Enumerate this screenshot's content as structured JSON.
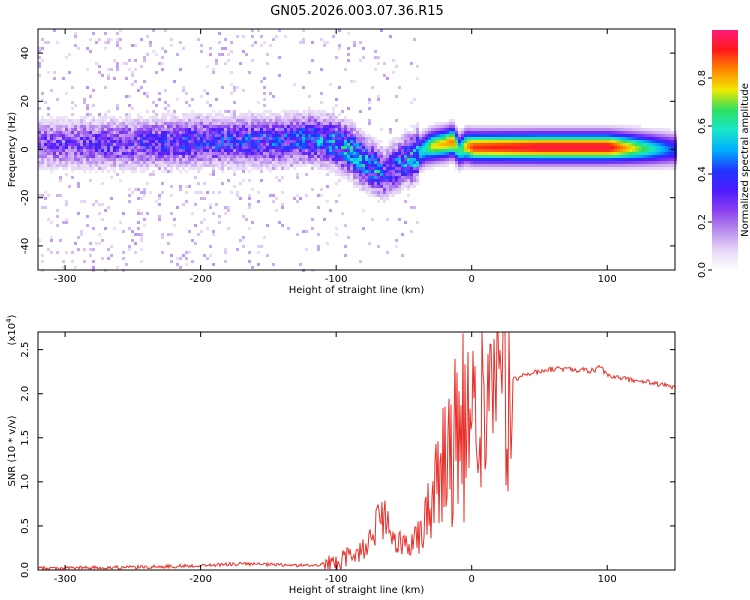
{
  "title": "GN05.2026.003.07.36.R15",
  "colors": {
    "snr_line": "#e8302a",
    "background": "#ffffff",
    "colormap": [
      "#ffffff",
      "#e6d6f6",
      "#b98cef",
      "#8a3ff0",
      "#4a1bff",
      "#1f38ff",
      "#00b0ff",
      "#18e6c8",
      "#2fe060",
      "#f0e800",
      "#ff8800",
      "#ff1a1a",
      "#ff1a7a"
    ]
  },
  "chart_data": [
    {
      "type": "heatmap",
      "title": "GN05.2026.003.07.36.R15",
      "xlabel": "Height of straight line (km)",
      "ylabel": "Frequency (Hz)",
      "xlim": [
        -320,
        150
      ],
      "ylim": [
        -50,
        50
      ],
      "xticks": [
        -300,
        -200,
        -100,
        0,
        100
      ],
      "xtick_labels": [
        "-300",
        "-200",
        "-100",
        "0",
        "100"
      ],
      "yticks": [
        -40,
        -20,
        0,
        20,
        40
      ],
      "ytick_labels": [
        "-40",
        "-20",
        "0",
        "20",
        "40"
      ],
      "colorbar": {
        "label": "Normalized spectral amplitude",
        "range": [
          0.0,
          1.0
        ],
        "ticks": [
          0.0,
          0.2,
          0.4,
          0.6,
          0.8
        ],
        "tick_labels": [
          "0.0",
          "0.2",
          "0.4",
          "0.6",
          "0.8"
        ]
      },
      "ridge": {
        "height_km": [
          -315,
          -250,
          -200,
          -150,
          -120,
          -100,
          -90,
          -80,
          -70,
          -65,
          -60,
          -55,
          -50,
          -45,
          -40,
          -35,
          -30,
          -20,
          -15,
          -10,
          -5,
          0,
          50,
          100,
          150
        ],
        "frequency_hz": [
          3,
          3,
          4,
          4,
          5,
          3,
          0,
          -5,
          -8,
          -10,
          -7,
          -6,
          -4,
          -3,
          -1,
          1,
          2,
          3,
          4,
          0,
          2,
          1.5,
          1.5,
          1.5,
          0.5
        ],
        "amplitude": [
          0.25,
          0.3,
          0.35,
          0.35,
          0.4,
          0.45,
          0.5,
          0.5,
          0.45,
          0.3,
          0.35,
          0.4,
          0.45,
          0.5,
          0.55,
          0.6,
          0.75,
          0.8,
          0.85,
          0.6,
          0.8,
          0.9,
          0.95,
          0.95,
          0.4
        ]
      }
    },
    {
      "type": "line",
      "xlabel": "Height of straight line (km)",
      "ylabel": "SNR (10 * v/v)",
      "y_multiplier": "(x10",
      "y_multiplier_exp": "4",
      "xlim": [
        -320,
        150
      ],
      "ylim": [
        0,
        2.7
      ],
      "xticks": [
        -300,
        -200,
        -100,
        0,
        100
      ],
      "xtick_labels": [
        "-300",
        "-200",
        "-100",
        "0",
        "100"
      ],
      "yticks": [
        0.0,
        0.5,
        1.0,
        1.5,
        2.0,
        2.5
      ],
      "ytick_labels": [
        "0.0",
        "0.5",
        "1.0",
        "1.5",
        "2.0",
        "2.5"
      ],
      "series": [
        {
          "name": "SNR",
          "x": [
            -320,
            -250,
            -200,
            -170,
            -150,
            -120,
            -100,
            -90,
            -80,
            -75,
            -70,
            -65,
            -60,
            -55,
            -50,
            -45,
            -40,
            -35,
            -30,
            -25,
            -20,
            -15,
            -10,
            -5,
            0,
            5,
            10,
            15,
            20,
            25,
            30,
            40,
            50,
            60,
            70,
            80,
            90,
            95,
            100,
            110,
            120,
            130,
            140,
            150
          ],
          "y": [
            0.02,
            0.03,
            0.05,
            0.07,
            0.06,
            0.05,
            0.08,
            0.15,
            0.25,
            0.35,
            0.5,
            0.6,
            0.4,
            0.25,
            0.3,
            0.35,
            0.4,
            0.55,
            0.8,
            1.1,
            1.3,
            1.4,
            1.5,
            1.6,
            1.7,
            1.75,
            1.95,
            2.0,
            2.05,
            2.1,
            2.15,
            2.22,
            2.25,
            2.28,
            2.28,
            2.27,
            2.26,
            2.3,
            2.2,
            2.18,
            2.15,
            2.13,
            2.1,
            2.07
          ]
        }
      ]
    }
  ]
}
